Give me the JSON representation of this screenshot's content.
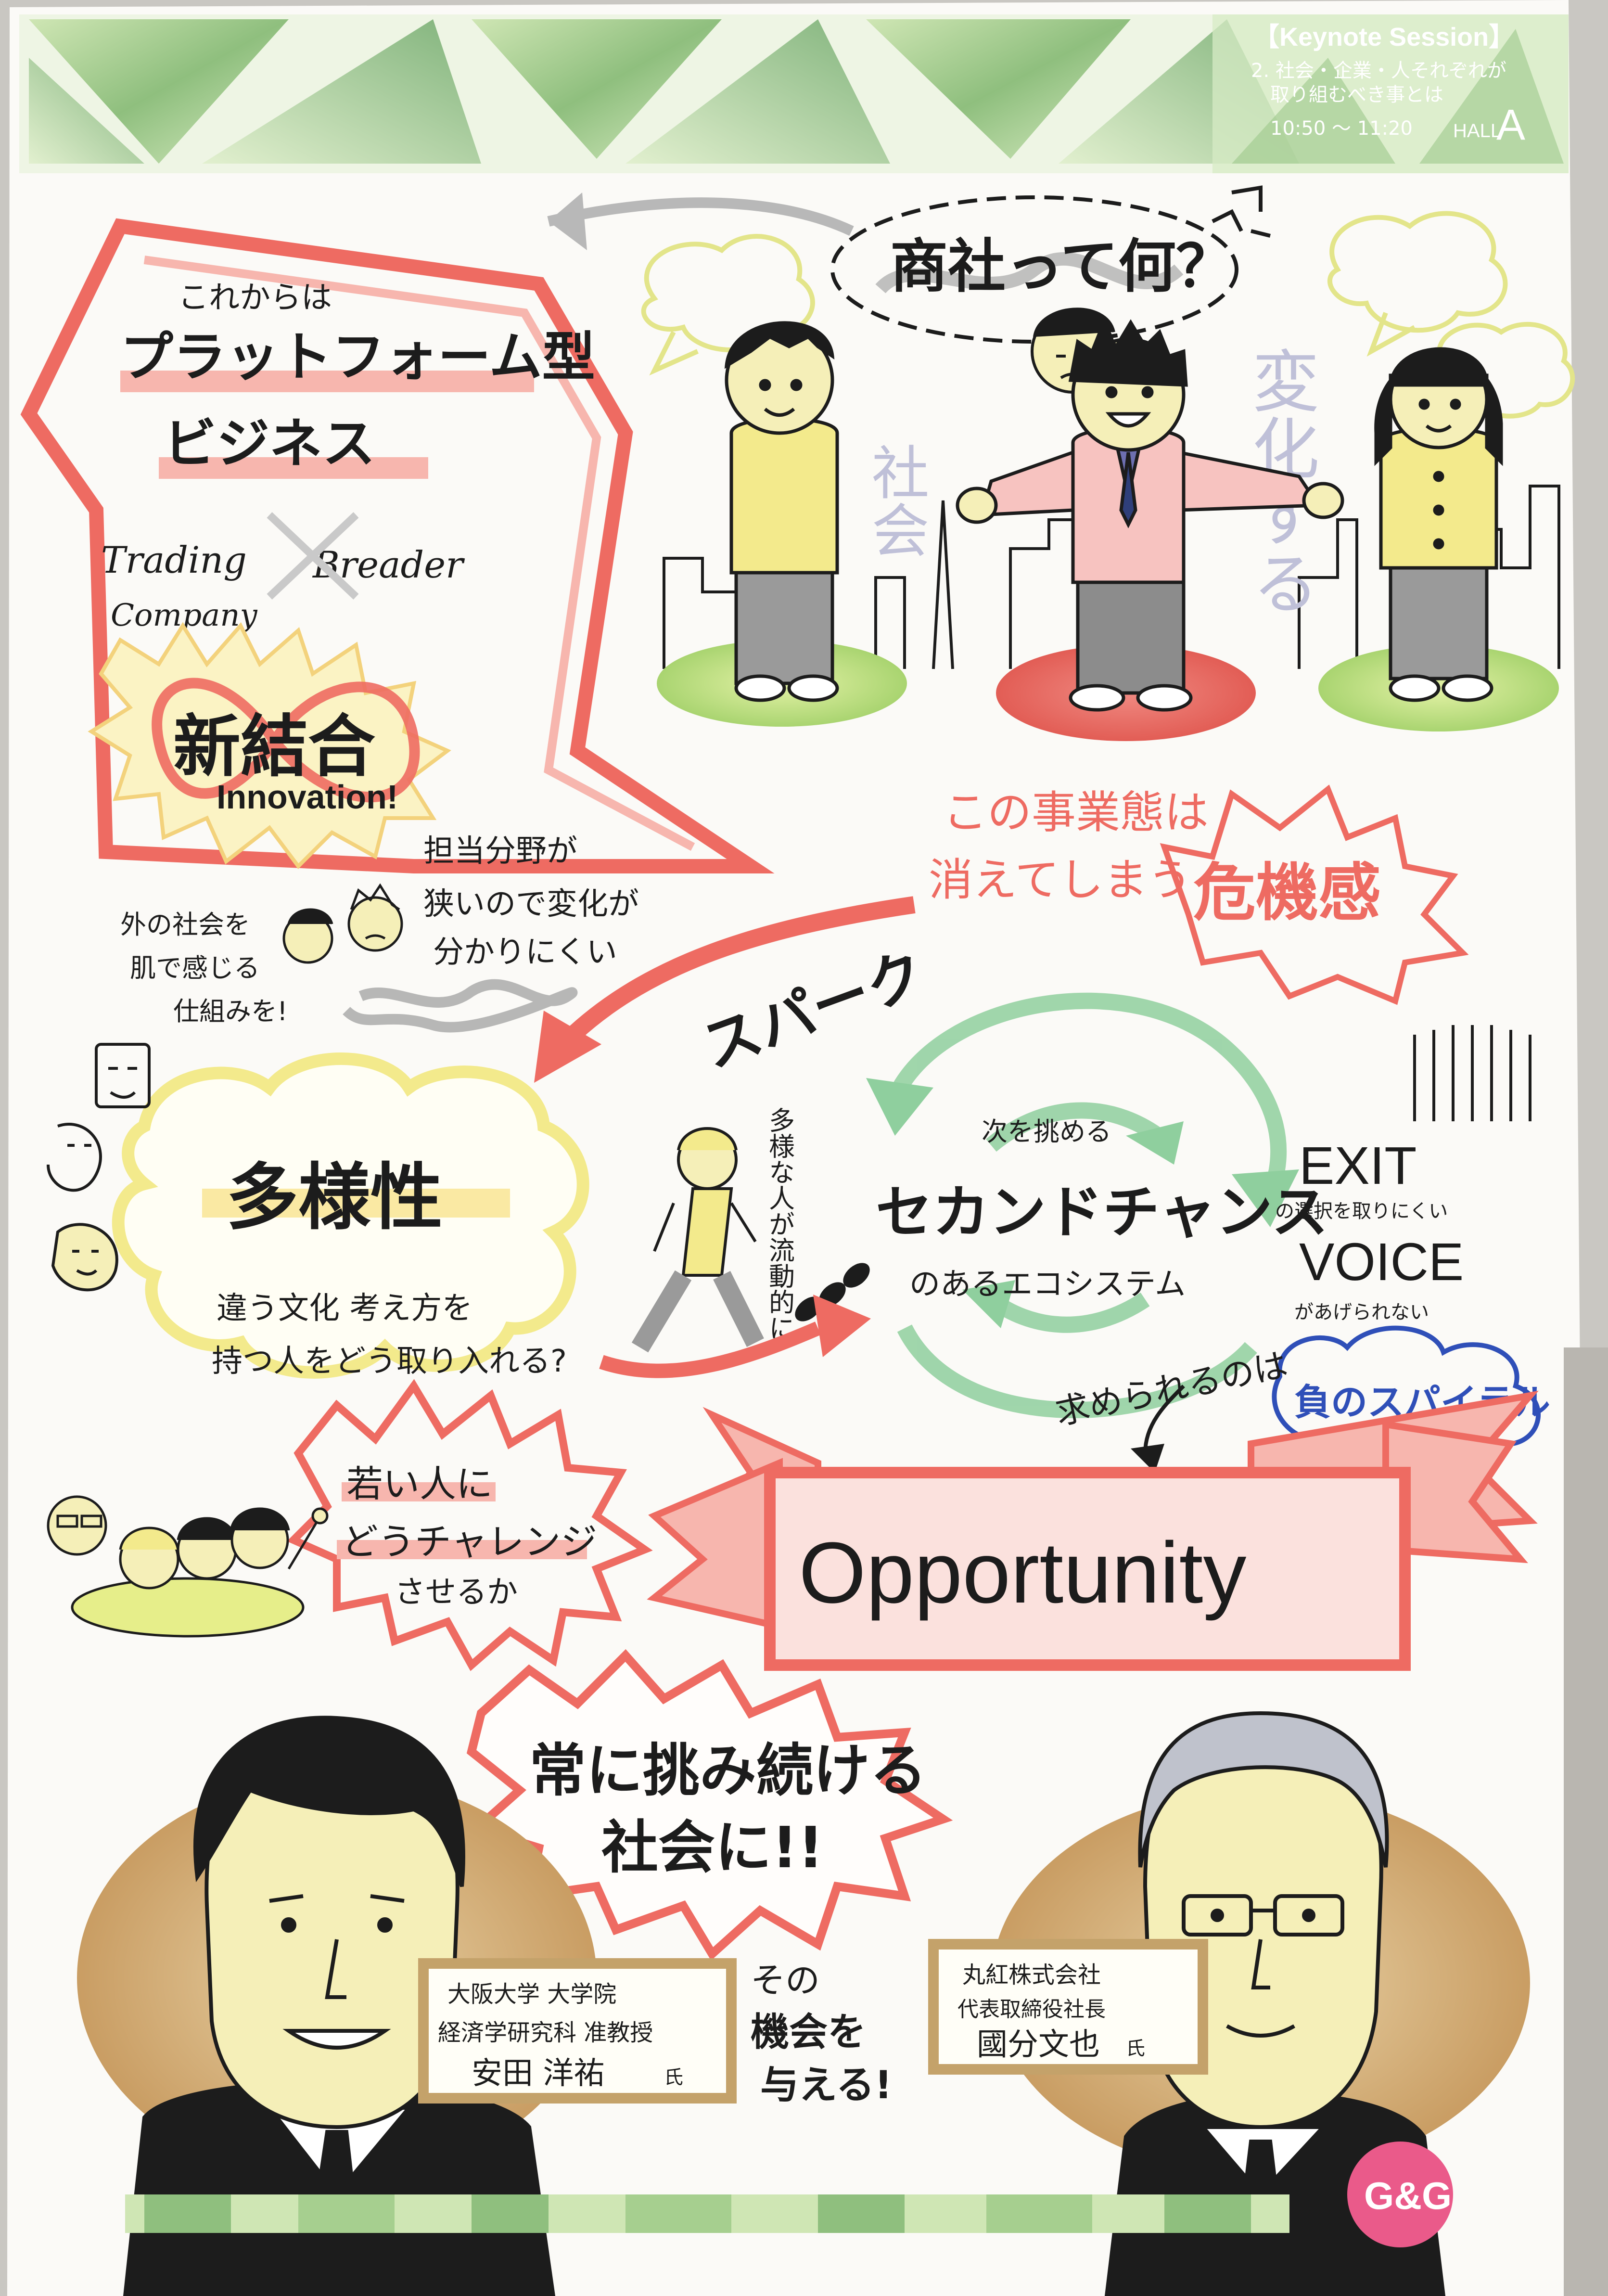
{
  "header": {
    "session": "【Keynote Session】",
    "title_line1": "2. 社会・企業・人それぞれが",
    "title_line2": "取り組むべき事とは",
    "time": "10:50 ～ 11:20",
    "hall_label": "HALL",
    "hall_letter": "A"
  },
  "top_question": "商社って何？",
  "society_vertical": "社会",
  "change_vertical": "変化する",
  "platform": {
    "intro": "これからは",
    "line1": "プラットフォーム型",
    "line2": "ビジネス",
    "left_term_1": "Trading",
    "left_term_2": "Company",
    "right_term": "Breader",
    "new_combination": "新結合",
    "innovation": "Innovation!"
  },
  "narrow_field": {
    "line1": "担当分野が",
    "line2": "狭いので変化が",
    "line3": "分かりにくい"
  },
  "outside_society": {
    "line1": "外の社会を",
    "line2": "肌で感じる",
    "line3": "仕組みを!"
  },
  "crisis": {
    "line1": "この事業態は",
    "line2": "消えてしまう",
    "emphasis": "危機感"
  },
  "spark": "スパーク",
  "diversity": {
    "title": "多様性",
    "line1": "違う文化 考え方を",
    "line2": "持つ人をどう取り入れる?"
  },
  "mobility": "多様な人が流動的に!",
  "second_chance": {
    "above": "次を挑める",
    "title": "セカンドチャンス",
    "below": "のあるエコシステム"
  },
  "exit_voice": {
    "exit": "EXIT",
    "exit_note": "の選択を取りにくい",
    "voice": "VOICE",
    "voice_note": "があげられない",
    "cycle": "負のスパイラル"
  },
  "required": "求められるのは",
  "youth": {
    "line1": "若い人に",
    "line2": "どうチャレンジ",
    "line3": "させるか"
  },
  "opportunity": "Opportunity",
  "always_challenge": {
    "line1": "常に挑み続ける",
    "line2": "社会に!!"
  },
  "give_chance": {
    "line1": "その",
    "line2": "機会を",
    "line3": "与える!"
  },
  "speaker_left": {
    "line1": "大阪大学 大学院",
    "line2": "経済学研究科 准教授",
    "name": "安田 洋祐",
    "honorific": "氏"
  },
  "speaker_right": {
    "line1": "丸紅株式会社",
    "line2": "代表取締役社長",
    "name": "國分文也",
    "honorific": "氏"
  },
  "logo": "G&G",
  "colors": {
    "red": "#ee6b62",
    "pink": "#f7b6ae",
    "green": "#8fcf9e",
    "yellow": "#f3ea8c",
    "blue": "#2f4fb8",
    "ink": "#1c1c1c"
  }
}
